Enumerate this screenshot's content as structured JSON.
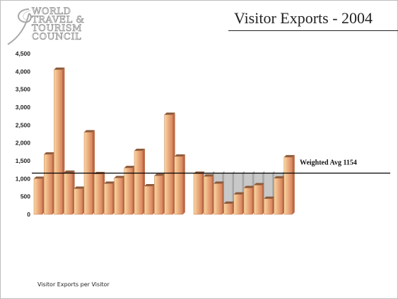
{
  "title": "Visitor Exports - 2004",
  "logo": {
    "lines": [
      "WORLD",
      "TRAVEL &",
      "TOURISM",
      "COUNCIL"
    ]
  },
  "footer": "Visitor Exports per Visitor",
  "chart_data": {
    "type": "bar",
    "ylim": [
      0,
      4500
    ],
    "yticks": [
      "0",
      "500",
      "1,000",
      "1,500",
      "2,000",
      "2,500",
      "3,000",
      "3,500",
      "4,000",
      "4,500"
    ],
    "grid": false,
    "groups": [
      {
        "values": [
          1000,
          1680,
          4050,
          1170,
          720,
          2300,
          1130,
          860,
          1020,
          1300,
          1780,
          790,
          1080,
          2790,
          1620
        ]
      },
      {
        "values": [
          1140,
          1060,
          860,
          300,
          560,
          740,
          820,
          440,
          1010,
          1600
        ]
      }
    ],
    "reference_line": {
      "value": 1154,
      "label": "Weighted Avg 1154"
    },
    "colors": {
      "bar_light": "#fad7a0",
      "bar_dark": "#d9805a",
      "bar_side": "#b96a44",
      "gap_fill": "#c8c8c8",
      "avg_line": "#000000"
    }
  }
}
